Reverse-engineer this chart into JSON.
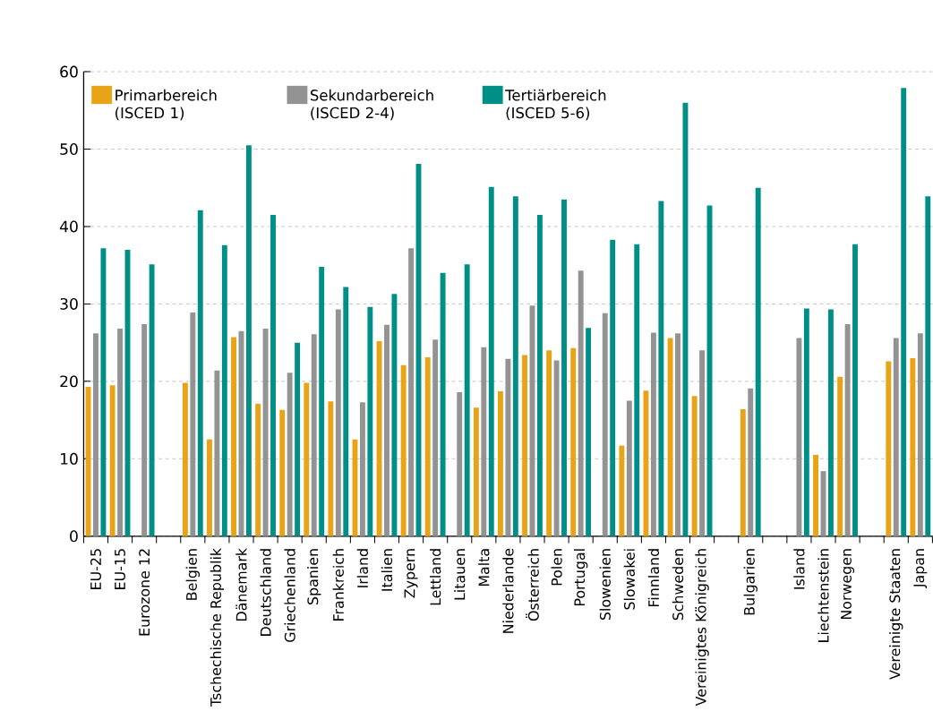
{
  "chart_data": {
    "type": "bar",
    "categories": [
      "EU-25",
      "EU-15",
      "Eurozone 12",
      null,
      "Belgien",
      "Tschechische Republik",
      "Dänemark",
      "Deutschland",
      "Griechenland",
      "Spanien",
      "Frankreich",
      "Irland",
      "Italien",
      "Zypern",
      "Lettland",
      "Litauen",
      "Malta",
      "Niederlande",
      "Österreich",
      "Polen",
      "Portugal",
      "Slowenien",
      "Slowakei",
      "Finnland",
      "Schweden",
      "Vereinigtes Königreich",
      null,
      "Bulgarien",
      null,
      "Island",
      "Liechtenstein",
      "Norwegen",
      null,
      "Vereinigte Staaten",
      "Japan"
    ],
    "series": [
      {
        "name": "Primarbereich (ISCED 1)",
        "color": "#e8a317",
        "values": [
          19.3,
          19.5,
          null,
          null,
          19.8,
          12.5,
          25.7,
          17.1,
          16.3,
          19.8,
          17.4,
          12.5,
          25.2,
          22.1,
          23.1,
          null,
          16.6,
          18.7,
          23.4,
          24.0,
          24.3,
          null,
          11.7,
          18.8,
          25.6,
          18.1,
          null,
          16.4,
          null,
          null,
          10.5,
          20.6,
          null,
          22.6,
          23.0
        ]
      },
      {
        "name": "Sekundarbereich (ISCED 2-4)",
        "color": "#939393",
        "values": [
          26.2,
          26.8,
          27.4,
          null,
          28.9,
          21.4,
          26.5,
          26.8,
          21.1,
          26.1,
          29.3,
          17.3,
          27.3,
          37.2,
          25.4,
          18.6,
          24.4,
          22.9,
          29.8,
          22.7,
          34.3,
          28.8,
          17.5,
          26.3,
          26.2,
          24.0,
          null,
          19.1,
          null,
          25.6,
          8.4,
          27.4,
          null,
          25.6,
          26.2
        ]
      },
      {
        "name": "Tertiärbereich (ISCED 5-6)",
        "color": "#008f86",
        "values": [
          37.2,
          37.0,
          35.1,
          null,
          42.1,
          37.6,
          50.5,
          41.5,
          25.0,
          34.8,
          32.2,
          29.6,
          31.3,
          48.1,
          34.0,
          35.1,
          45.1,
          43.9,
          41.5,
          43.5,
          26.9,
          38.3,
          37.7,
          43.3,
          56.0,
          42.7,
          null,
          45.0,
          null,
          29.4,
          29.3,
          37.7,
          null,
          57.9,
          43.9
        ]
      }
    ],
    "ylim": [
      0,
      60
    ],
    "yticks": [
      0,
      10,
      20,
      30,
      40,
      50,
      60
    ],
    "grid": "y",
    "legend": "top left"
  }
}
